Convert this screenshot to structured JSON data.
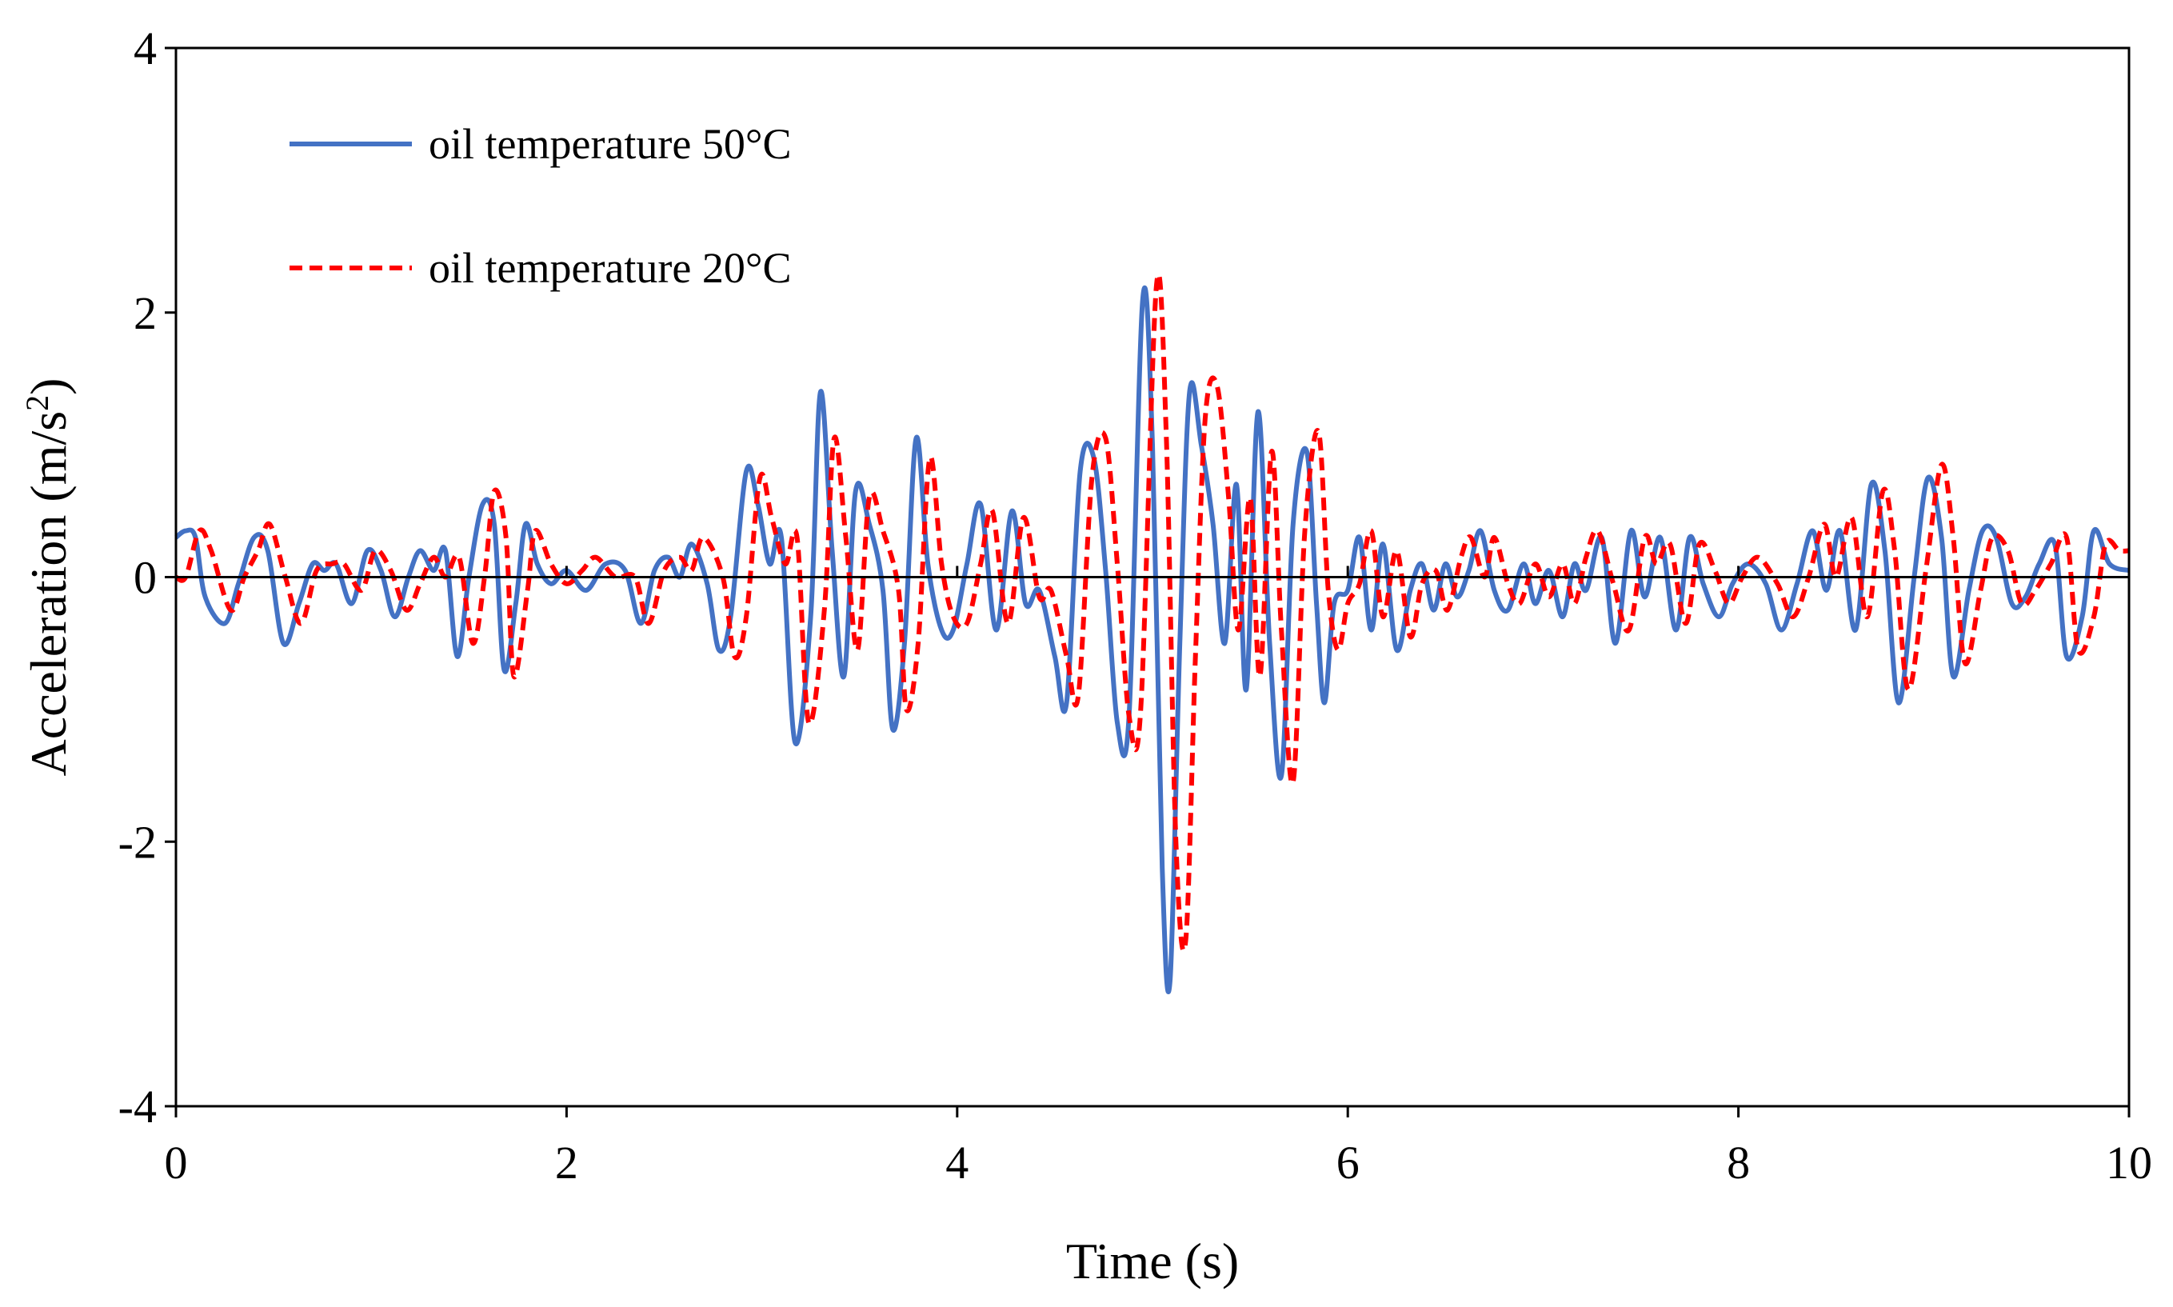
{
  "chart_data": {
    "type": "line",
    "title": "",
    "xlabel": "Time (s)",
    "ylabel": {
      "base": "Acceleration (m/s",
      "sup": "2",
      "end": ")"
    },
    "xlim": [
      0,
      10
    ],
    "ylim": [
      -4,
      4
    ],
    "xticks": [
      0,
      2,
      4,
      6,
      8,
      10
    ],
    "yticks": [
      -4,
      -2,
      0,
      2,
      4
    ],
    "legend_position": "top-left",
    "series": [
      {
        "name": "oil temperature 50°C",
        "color": "#4472C4",
        "dash": "solid",
        "points": [
          [
            0.0,
            0.3
          ],
          [
            0.05,
            0.35
          ],
          [
            0.1,
            0.3
          ],
          [
            0.15,
            -0.15
          ],
          [
            0.25,
            -0.35
          ],
          [
            0.32,
            -0.05
          ],
          [
            0.4,
            0.3
          ],
          [
            0.47,
            0.2
          ],
          [
            0.55,
            -0.5
          ],
          [
            0.63,
            -0.2
          ],
          [
            0.7,
            0.1
          ],
          [
            0.76,
            0.05
          ],
          [
            0.82,
            0.1
          ],
          [
            0.9,
            -0.2
          ],
          [
            0.98,
            0.2
          ],
          [
            1.05,
            0.05
          ],
          [
            1.12,
            -0.3
          ],
          [
            1.19,
            0.0
          ],
          [
            1.25,
            0.2
          ],
          [
            1.32,
            0.05
          ],
          [
            1.38,
            0.2
          ],
          [
            1.44,
            -0.6
          ],
          [
            1.5,
            0.0
          ],
          [
            1.57,
            0.55
          ],
          [
            1.63,
            0.4
          ],
          [
            1.68,
            -0.7
          ],
          [
            1.74,
            -0.2
          ],
          [
            1.79,
            0.4
          ],
          [
            1.85,
            0.1
          ],
          [
            1.92,
            -0.05
          ],
          [
            2.0,
            0.05
          ],
          [
            2.1,
            -0.1
          ],
          [
            2.2,
            0.1
          ],
          [
            2.3,
            0.05
          ],
          [
            2.38,
            -0.35
          ],
          [
            2.45,
            0.05
          ],
          [
            2.52,
            0.15
          ],
          [
            2.58,
            0.0
          ],
          [
            2.64,
            0.25
          ],
          [
            2.72,
            -0.05
          ],
          [
            2.78,
            -0.55
          ],
          [
            2.84,
            -0.3
          ],
          [
            2.92,
            0.8
          ],
          [
            2.98,
            0.55
          ],
          [
            3.04,
            0.1
          ],
          [
            3.1,
            0.3
          ],
          [
            3.17,
            -1.25
          ],
          [
            3.25,
            -0.3
          ],
          [
            3.3,
            1.4
          ],
          [
            3.36,
            0.2
          ],
          [
            3.42,
            -0.75
          ],
          [
            3.48,
            0.65
          ],
          [
            3.55,
            0.4
          ],
          [
            3.62,
            -0.1
          ],
          [
            3.67,
            -1.15
          ],
          [
            3.73,
            -0.5
          ],
          [
            3.79,
            1.05
          ],
          [
            3.85,
            0.1
          ],
          [
            3.92,
            -0.4
          ],
          [
            3.98,
            -0.4
          ],
          [
            4.05,
            0.1
          ],
          [
            4.12,
            0.55
          ],
          [
            4.2,
            -0.4
          ],
          [
            4.28,
            0.5
          ],
          [
            4.35,
            -0.2
          ],
          [
            4.42,
            -0.1
          ],
          [
            4.5,
            -0.6
          ],
          [
            4.56,
            -0.95
          ],
          [
            4.63,
            0.8
          ],
          [
            4.7,
            0.9
          ],
          [
            4.76,
            0.05
          ],
          [
            4.82,
            -1.1
          ],
          [
            4.88,
            -1.05
          ],
          [
            4.95,
            2.1
          ],
          [
            5.0,
            1.0
          ],
          [
            5.05,
            -2.2
          ],
          [
            5.09,
            -3.05
          ],
          [
            5.14,
            -0.5
          ],
          [
            5.19,
            1.4
          ],
          [
            5.25,
            1.0
          ],
          [
            5.31,
            0.4
          ],
          [
            5.37,
            -0.5
          ],
          [
            5.43,
            0.7
          ],
          [
            5.48,
            -0.85
          ],
          [
            5.54,
            1.25
          ],
          [
            5.6,
            -0.5
          ],
          [
            5.66,
            -1.5
          ],
          [
            5.72,
            0.4
          ],
          [
            5.79,
            0.95
          ],
          [
            5.84,
            -0.2
          ],
          [
            5.88,
            -0.95
          ],
          [
            5.93,
            -0.2
          ],
          [
            6.0,
            -0.1
          ],
          [
            6.06,
            0.3
          ],
          [
            6.12,
            -0.4
          ],
          [
            6.18,
            0.25
          ],
          [
            6.25,
            -0.55
          ],
          [
            6.32,
            -0.1
          ],
          [
            6.38,
            0.1
          ],
          [
            6.44,
            -0.25
          ],
          [
            6.5,
            0.1
          ],
          [
            6.56,
            -0.15
          ],
          [
            6.62,
            0.05
          ],
          [
            6.68,
            0.35
          ],
          [
            6.75,
            -0.1
          ],
          [
            6.82,
            -0.25
          ],
          [
            6.9,
            0.1
          ],
          [
            6.96,
            -0.2
          ],
          [
            7.03,
            0.05
          ],
          [
            7.1,
            -0.3
          ],
          [
            7.16,
            0.1
          ],
          [
            7.22,
            -0.1
          ],
          [
            7.3,
            0.3
          ],
          [
            7.37,
            -0.5
          ],
          [
            7.45,
            0.35
          ],
          [
            7.52,
            -0.15
          ],
          [
            7.6,
            0.3
          ],
          [
            7.68,
            -0.4
          ],
          [
            7.75,
            0.3
          ],
          [
            7.82,
            -0.05
          ],
          [
            7.9,
            -0.3
          ],
          [
            7.97,
            -0.05
          ],
          [
            8.05,
            0.1
          ],
          [
            8.14,
            -0.05
          ],
          [
            8.22,
            -0.4
          ],
          [
            8.3,
            -0.05
          ],
          [
            8.38,
            0.35
          ],
          [
            8.45,
            -0.1
          ],
          [
            8.52,
            0.35
          ],
          [
            8.6,
            -0.4
          ],
          [
            8.68,
            0.7
          ],
          [
            8.75,
            0.2
          ],
          [
            8.82,
            -0.95
          ],
          [
            8.9,
            0.0
          ],
          [
            8.97,
            0.75
          ],
          [
            9.04,
            0.3
          ],
          [
            9.1,
            -0.75
          ],
          [
            9.18,
            -0.1
          ],
          [
            9.25,
            0.35
          ],
          [
            9.32,
            0.3
          ],
          [
            9.4,
            -0.2
          ],
          [
            9.47,
            -0.15
          ],
          [
            9.54,
            0.1
          ],
          [
            9.62,
            0.25
          ],
          [
            9.68,
            -0.6
          ],
          [
            9.76,
            -0.3
          ],
          [
            9.82,
            0.35
          ],
          [
            9.9,
            0.1
          ],
          [
            10.0,
            0.05
          ]
        ]
      },
      {
        "name": "oil temperature 20°C",
        "color": "#FF0000",
        "dash": "dashed",
        "points": [
          [
            0.0,
            0.0
          ],
          [
            0.05,
            0.0
          ],
          [
            0.12,
            0.35
          ],
          [
            0.18,
            0.2
          ],
          [
            0.28,
            -0.25
          ],
          [
            0.35,
            0.0
          ],
          [
            0.42,
            0.2
          ],
          [
            0.48,
            0.4
          ],
          [
            0.56,
            0.0
          ],
          [
            0.64,
            -0.35
          ],
          [
            0.72,
            0.05
          ],
          [
            0.8,
            0.1
          ],
          [
            0.86,
            0.1
          ],
          [
            0.95,
            -0.1
          ],
          [
            1.02,
            0.2
          ],
          [
            1.1,
            0.05
          ],
          [
            1.18,
            -0.25
          ],
          [
            1.25,
            -0.05
          ],
          [
            1.32,
            0.15
          ],
          [
            1.38,
            0.0
          ],
          [
            1.45,
            0.15
          ],
          [
            1.52,
            -0.5
          ],
          [
            1.58,
            0.0
          ],
          [
            1.63,
            0.65
          ],
          [
            1.69,
            0.3
          ],
          [
            1.73,
            -0.75
          ],
          [
            1.8,
            -0.1
          ],
          [
            1.84,
            0.35
          ],
          [
            1.92,
            0.1
          ],
          [
            2.0,
            -0.05
          ],
          [
            2.08,
            0.05
          ],
          [
            2.15,
            0.15
          ],
          [
            2.25,
            0.0
          ],
          [
            2.35,
            0.0
          ],
          [
            2.42,
            -0.35
          ],
          [
            2.5,
            0.05
          ],
          [
            2.58,
            0.15
          ],
          [
            2.64,
            0.05
          ],
          [
            2.7,
            0.3
          ],
          [
            2.8,
            0.0
          ],
          [
            2.86,
            -0.6
          ],
          [
            2.92,
            -0.3
          ],
          [
            2.99,
            0.75
          ],
          [
            3.05,
            0.45
          ],
          [
            3.12,
            0.1
          ],
          [
            3.18,
            0.3
          ],
          [
            3.24,
            -1.1
          ],
          [
            3.32,
            -0.25
          ],
          [
            3.37,
            1.05
          ],
          [
            3.43,
            0.3
          ],
          [
            3.49,
            -0.55
          ],
          [
            3.55,
            0.6
          ],
          [
            3.62,
            0.35
          ],
          [
            3.7,
            -0.1
          ],
          [
            3.74,
            -1.0
          ],
          [
            3.8,
            -0.5
          ],
          [
            3.86,
            0.9
          ],
          [
            3.92,
            0.1
          ],
          [
            3.98,
            -0.3
          ],
          [
            4.05,
            -0.35
          ],
          [
            4.12,
            0.1
          ],
          [
            4.18,
            0.5
          ],
          [
            4.26,
            -0.35
          ],
          [
            4.34,
            0.45
          ],
          [
            4.42,
            -0.15
          ],
          [
            4.48,
            -0.1
          ],
          [
            4.56,
            -0.6
          ],
          [
            4.62,
            -0.9
          ],
          [
            4.69,
            0.75
          ],
          [
            4.76,
            1.05
          ],
          [
            4.82,
            0.1
          ],
          [
            4.88,
            -1.05
          ],
          [
            4.94,
            -1.0
          ],
          [
            5.02,
            2.2
          ],
          [
            5.07,
            1.1
          ],
          [
            5.12,
            -2.0
          ],
          [
            5.17,
            -2.75
          ],
          [
            5.22,
            -0.6
          ],
          [
            5.27,
            1.2
          ],
          [
            5.33,
            1.45
          ],
          [
            5.39,
            0.6
          ],
          [
            5.44,
            -0.4
          ],
          [
            5.5,
            0.6
          ],
          [
            5.55,
            -0.75
          ],
          [
            5.61,
            0.95
          ],
          [
            5.66,
            -0.4
          ],
          [
            5.72,
            -1.55
          ],
          [
            5.78,
            0.35
          ],
          [
            5.85,
            1.1
          ],
          [
            5.9,
            -0.1
          ],
          [
            5.95,
            -0.55
          ],
          [
            6.0,
            -0.2
          ],
          [
            6.06,
            -0.05
          ],
          [
            6.12,
            0.35
          ],
          [
            6.18,
            -0.3
          ],
          [
            6.25,
            0.2
          ],
          [
            6.32,
            -0.45
          ],
          [
            6.38,
            -0.05
          ],
          [
            6.45,
            0.05
          ],
          [
            6.51,
            -0.25
          ],
          [
            6.58,
            0.15
          ],
          [
            6.63,
            0.3
          ],
          [
            6.7,
            0.0
          ],
          [
            6.75,
            0.3
          ],
          [
            6.82,
            -0.05
          ],
          [
            6.88,
            -0.2
          ],
          [
            6.96,
            0.1
          ],
          [
            7.03,
            -0.15
          ],
          [
            7.1,
            0.1
          ],
          [
            7.16,
            -0.2
          ],
          [
            7.22,
            0.15
          ],
          [
            7.28,
            0.35
          ],
          [
            7.36,
            -0.05
          ],
          [
            7.44,
            -0.4
          ],
          [
            7.52,
            0.3
          ],
          [
            7.58,
            0.1
          ],
          [
            7.65,
            0.25
          ],
          [
            7.73,
            -0.35
          ],
          [
            7.8,
            0.25
          ],
          [
            7.88,
            0.05
          ],
          [
            7.95,
            -0.2
          ],
          [
            8.02,
            0.0
          ],
          [
            8.1,
            0.15
          ],
          [
            8.2,
            -0.05
          ],
          [
            8.28,
            -0.3
          ],
          [
            8.36,
            0.0
          ],
          [
            8.44,
            0.4
          ],
          [
            8.5,
            0.0
          ],
          [
            8.58,
            0.45
          ],
          [
            8.66,
            -0.3
          ],
          [
            8.74,
            0.65
          ],
          [
            8.8,
            0.2
          ],
          [
            8.87,
            -0.85
          ],
          [
            8.96,
            0.05
          ],
          [
            9.04,
            0.85
          ],
          [
            9.1,
            0.3
          ],
          [
            9.16,
            -0.65
          ],
          [
            9.24,
            -0.1
          ],
          [
            9.3,
            0.3
          ],
          [
            9.38,
            0.2
          ],
          [
            9.45,
            -0.2
          ],
          [
            9.52,
            -0.1
          ],
          [
            9.6,
            0.1
          ],
          [
            9.68,
            0.3
          ],
          [
            9.74,
            -0.55
          ],
          [
            9.82,
            -0.3
          ],
          [
            9.88,
            0.25
          ],
          [
            9.95,
            0.2
          ],
          [
            10.0,
            0.2
          ]
        ]
      }
    ]
  }
}
